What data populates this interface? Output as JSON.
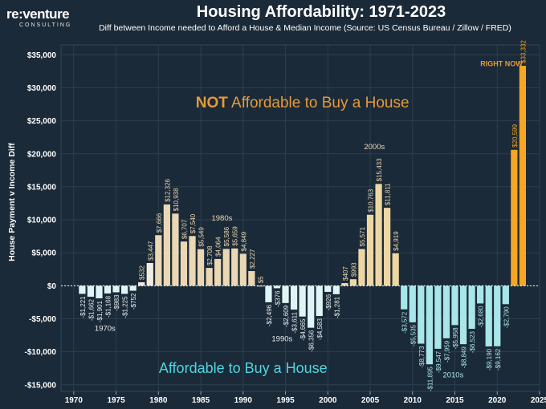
{
  "brand": {
    "logo_text": "re:venture",
    "logo_sub": "CONSULTING"
  },
  "chart_data": {
    "type": "bar",
    "title": "Housing Affordability: 1971-2023",
    "subtitle": "Diff between Income needed to Afford a House & Median Income (Source: US Census Bureau / Zillow / FRED)",
    "ylabel": "House Payment v Income Diff",
    "xlabel": "",
    "ylim": [
      -16000,
      36500
    ],
    "xlim": [
      1968.5,
      2025
    ],
    "yticks": [
      -15000,
      -10000,
      -5000,
      0,
      5000,
      10000,
      15000,
      20000,
      25000,
      30000,
      35000
    ],
    "ytick_labels": [
      "-$15,000",
      "-$10,000",
      "-$5,000",
      "$0",
      "$5,000",
      "$10,000",
      "$15,000",
      "$20,000",
      "$25,000",
      "$30,000",
      "$35,000"
    ],
    "xticks": [
      1970,
      1975,
      1980,
      1985,
      1990,
      1995,
      2000,
      2005,
      2010,
      2015,
      2020,
      2025
    ],
    "grid": true,
    "years": [
      1971,
      1972,
      1973,
      1974,
      1975,
      1976,
      1977,
      1978,
      1979,
      1980,
      1981,
      1982,
      1983,
      1984,
      1985,
      1986,
      1987,
      1988,
      1989,
      1990,
      1991,
      1992,
      1993,
      1994,
      1995,
      1996,
      1997,
      1998,
      1999,
      2000,
      2001,
      2002,
      2003,
      2004,
      2005,
      2006,
      2007,
      2008,
      2009,
      2010,
      2011,
      2012,
      2013,
      2014,
      2015,
      2016,
      2017,
      2018,
      2019,
      2020,
      2021,
      2022,
      2023
    ],
    "values": [
      -1221,
      -1662,
      -1901,
      -1168,
      -983,
      -1225,
      -752,
      532,
      3447,
      7666,
      12326,
      10938,
      6707,
      7540,
      5549,
      2708,
      4064,
      5586,
      5659,
      4849,
      2227,
      5,
      -2496,
      -376,
      -2609,
      -3611,
      -4665,
      -6356,
      -4583,
      -926,
      -1281,
      407,
      993,
      5571,
      10763,
      15433,
      11811,
      4919,
      -3572,
      -5535,
      -8773,
      -11895,
      -9547,
      -7959,
      -5958,
      -8849,
      -6523,
      -2680,
      -9190,
      -9162,
      -2790,
      20599,
      33332
    ],
    "value_labels": [
      "-$1,221",
      "-$1,662",
      "-$1,901",
      "-$1,168",
      "-$983",
      "-$1,225",
      "-$752",
      "$532",
      "$3,447",
      "$7,666",
      "$12,326",
      "$10,938",
      "$6,707",
      "$7,540",
      "$5,549",
      "$2,708",
      "$4,064",
      "$5,586",
      "$5,659",
      "$4,849",
      "$2,227",
      "$5",
      "-$2,496",
      "-$376",
      "-$2,609",
      "-$3,611",
      "-$4,665",
      "-$6,356",
      "-$4,583",
      "-$926",
      "-$1,281",
      "$407",
      "$993",
      "$5,571",
      "$10,763",
      "$15,433",
      "$11,811",
      "$4,919",
      "-$3,572",
      "-$5,535",
      "-$8,773",
      "-$11,895",
      "-$9,547",
      "-$7,959",
      "-$5,958",
      "-$8,849",
      "-$6,523",
      "-$2,680",
      "-$9,190",
      "-$9,162",
      "-$2,790",
      "$20,599",
      "$33,332"
    ],
    "annotations": [
      {
        "id": "not-affordable",
        "prefix": "NOT",
        "text": " Affordable to Buy a House",
        "x": 1997,
        "y": 27000
      },
      {
        "id": "affordable",
        "text": "Affordable to Buy a House",
        "x": 1990,
        "y": -13200
      },
      {
        "id": "right-now",
        "text": "RIGHT NOW",
        "x": 2020.5,
        "y": 33300
      },
      {
        "id": "1970s",
        "text": "1970s",
        "x": 1973.7,
        "y": -6800
      },
      {
        "id": "1980s",
        "text": "1980s",
        "x": 1987.5,
        "y": 9900
      },
      {
        "id": "1990s",
        "text": "1990s",
        "x": 1994.6,
        "y": -8400
      },
      {
        "id": "2000s",
        "text": "2000s",
        "x": 2005.5,
        "y": 20700
      },
      {
        "id": "2010s",
        "text": "2010s",
        "x": 2014.8,
        "y": -13900
      }
    ],
    "colors": {
      "background": "#1b2a38",
      "positive_1970s": "#f2ece0",
      "positive_1980s": "#ead7b3",
      "positive_2000s": "#eed7a3",
      "current": "#f6a623",
      "negative_light": "#dff4f5",
      "negative_teal": "#a8e6e9",
      "accent_orange": "#e59a3a",
      "accent_teal": "#4fd6df",
      "decade_label": "#ead7b3",
      "grid": "#2d3e4e"
    }
  }
}
